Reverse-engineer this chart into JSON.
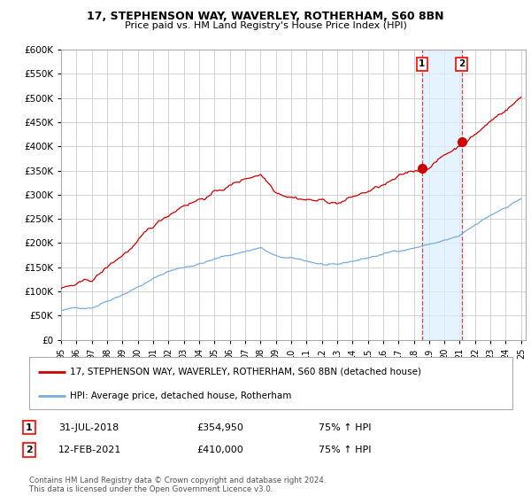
{
  "title": "17, STEPHENSON WAY, WAVERLEY, ROTHERHAM, S60 8BN",
  "subtitle": "Price paid vs. HM Land Registry's House Price Index (HPI)",
  "legend_label_red": "17, STEPHENSON WAY, WAVERLEY, ROTHERHAM, S60 8BN (detached house)",
  "legend_label_blue": "HPI: Average price, detached house, Rotherham",
  "transaction1_date": "31-JUL-2018",
  "transaction1_price": 354950,
  "transaction2_date": "12-FEB-2021",
  "transaction2_price": 410000,
  "transaction1_note": "75% ↑ HPI",
  "transaction2_note": "75% ↑ HPI",
  "footer": "Contains HM Land Registry data © Crown copyright and database right 2024.\nThis data is licensed under the Open Government Licence v3.0.",
  "ylim": [
    0,
    600000
  ],
  "yticks": [
    0,
    50000,
    100000,
    150000,
    200000,
    250000,
    300000,
    350000,
    400000,
    450000,
    500000,
    550000,
    600000
  ],
  "year_start": 1995,
  "year_end": 2025,
  "red_color": "#cc0000",
  "blue_color": "#7aacdc",
  "bg_color": "#ffffff",
  "grid_color": "#cccccc",
  "shade_color": "#ddeeff",
  "dashed_line_color": "#dd4444"
}
